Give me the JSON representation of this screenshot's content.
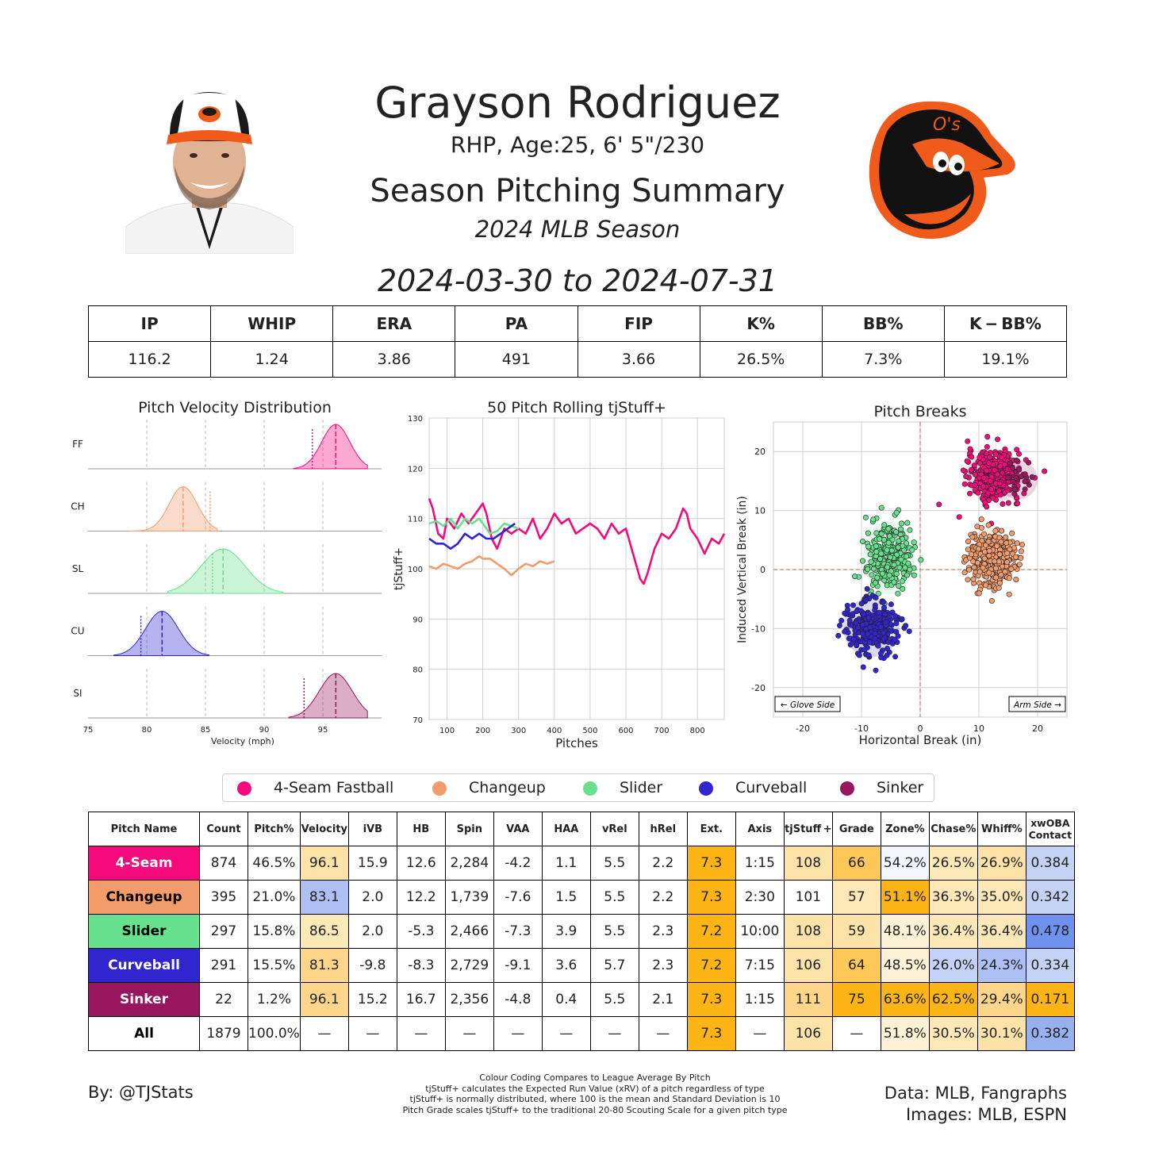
{
  "header": {
    "player_name": "Grayson Rodriguez",
    "bio": "RHP, Age:25, 6' 5\"/230",
    "subtitle": "Season Pitching Summary",
    "season": "2024 MLB Season",
    "date_range": "2024-03-30 to 2024-07-31"
  },
  "images": {
    "headshot": "player-headshot",
    "logo": "orioles-bird-logo"
  },
  "season_stats": {
    "headers": [
      "IP",
      "WHIP",
      "ERA",
      "PA",
      "FIP",
      "K%",
      "BB%",
      "K − BB%"
    ],
    "values": [
      "116.2",
      "1.24",
      "3.86",
      "491",
      "3.66",
      "26.5%",
      "7.3%",
      "19.1%"
    ]
  },
  "colors": {
    "4-Seam Fastball": "#f50a7b",
    "Changeup": "#f39c6b",
    "Slider": "#67e18d",
    "Curveball": "#3025ce",
    "Sinker": "#98165d",
    "grid": "#d0d0d0",
    "orange_dark": "#fdb515",
    "orange_mid": "#fdd16e",
    "orange_light": "#fde9b8",
    "blue_light": "#c7d3f5",
    "blue_mid": "#a6bdf2",
    "blue_dark": "#6f92ee"
  },
  "chart_data": [
    {
      "type": "area",
      "title": "Pitch Velocity Distribution",
      "xlabel": "Velocity (mph)",
      "xlim": [
        75,
        100
      ],
      "xticks": [
        75,
        80,
        85,
        90,
        95
      ],
      "series": [
        {
          "name": "FF",
          "mean": 96.1,
          "sd": 1.2,
          "range": [
            92.5,
            98.8
          ],
          "league_avg": 94.1
        },
        {
          "name": "CH",
          "mean": 83.1,
          "sd": 1.2,
          "range": [
            78.5,
            86.0
          ],
          "league_avg": 85.4
        },
        {
          "name": "SL",
          "mean": 86.5,
          "sd": 1.9,
          "range": [
            81.8,
            91.6
          ],
          "league_avg": 85.6
        },
        {
          "name": "CU",
          "mean": 81.3,
          "sd": 1.4,
          "range": [
            77.2,
            85.3
          ],
          "league_avg": 79.5
        },
        {
          "name": "SI",
          "mean": 96.1,
          "sd": 1.4,
          "range": [
            92.1,
            98.8
          ],
          "league_avg": 93.4
        }
      ]
    },
    {
      "type": "line",
      "title": "50 Pitch Rolling tjStuff+",
      "xlabel": "Pitches",
      "ylabel": "tjStuff+",
      "xlim": [
        50,
        875
      ],
      "ylim": [
        70,
        130
      ],
      "xticks": [
        100,
        200,
        300,
        400,
        500,
        600,
        700,
        800
      ],
      "yticks": [
        70,
        80,
        90,
        100,
        110,
        120,
        130
      ],
      "series": [
        {
          "name": "4-Seam Fastball",
          "x": [
            50,
            60,
            75,
            90,
            100,
            120,
            140,
            160,
            180,
            200,
            210,
            225,
            240,
            260,
            280,
            300,
            320,
            340,
            360,
            380,
            400,
            420,
            440,
            460,
            480,
            500,
            520,
            540,
            560,
            580,
            600,
            620,
            640,
            650,
            660,
            680,
            700,
            720,
            740,
            760,
            770,
            780,
            800,
            820,
            840,
            860,
            875
          ],
          "y": [
            114,
            112,
            107,
            106,
            110,
            108,
            111,
            109,
            111,
            113,
            111,
            106,
            104,
            108,
            107,
            108,
            107,
            110,
            106,
            108,
            111,
            109,
            110,
            107,
            108,
            109,
            108,
            106,
            109,
            107,
            108,
            103,
            98,
            97,
            99,
            104,
            107,
            106,
            108,
            112,
            111,
            108,
            106,
            103,
            106,
            105,
            107
          ]
        },
        {
          "name": "Changeup",
          "x": [
            50,
            70,
            90,
            110,
            130,
            150,
            170,
            190,
            200,
            220,
            240,
            260,
            280,
            300,
            320,
            340,
            360,
            380,
            400
          ],
          "y": [
            100.5,
            100,
            101,
            100.5,
            100,
            101,
            101.5,
            102.5,
            102,
            102,
            101,
            100,
            98.7,
            100,
            101,
            100.5,
            101.5,
            101,
            101.5
          ]
        },
        {
          "name": "Slider",
          "x": [
            50,
            70,
            90,
            110,
            130,
            150,
            170,
            190,
            200,
            220,
            240,
            260,
            280,
            300
          ],
          "y": [
            109,
            109.5,
            108.5,
            110,
            108,
            110,
            109,
            110,
            109,
            107,
            107.5,
            109,
            108.5,
            108
          ]
        },
        {
          "name": "Curveball",
          "x": [
            50,
            70,
            90,
            110,
            130,
            150,
            170,
            190,
            210,
            230,
            250,
            270,
            290
          ],
          "y": [
            106,
            105,
            105,
            104,
            105,
            107,
            106,
            107,
            106,
            106,
            107,
            108,
            109
          ]
        }
      ]
    },
    {
      "type": "scatter",
      "title": "Pitch Breaks",
      "xlabel": "Horizontal Break (in)",
      "ylabel": "Induced Vertical Break (in)",
      "xlim": [
        -25,
        25
      ],
      "ylim": [
        -25,
        25
      ],
      "xticks": [
        -20,
        -10,
        0,
        10,
        20
      ],
      "yticks": [
        -20,
        -10,
        0,
        10,
        20
      ],
      "annotations": [
        "← Glove Side",
        "Arm Side →"
      ],
      "series": [
        {
          "name": "4-Seam Fastball",
          "center": [
            12.6,
            15.9
          ],
          "spread": [
            2.2,
            2.0
          ],
          "count": 874
        },
        {
          "name": "Changeup",
          "center": [
            12.2,
            2.0
          ],
          "spread": [
            1.9,
            2.3
          ],
          "count": 395
        },
        {
          "name": "Slider",
          "center": [
            -5.3,
            2.0
          ],
          "spread": [
            2.0,
            2.8
          ],
          "count": 297
        },
        {
          "name": "Curveball",
          "center": [
            -8.3,
            -9.8
          ],
          "spread": [
            2.2,
            2.3
          ],
          "count": 291
        },
        {
          "name": "Sinker",
          "center": [
            16.7,
            15.2
          ],
          "spread": [
            1.5,
            1.5
          ],
          "count": 22
        }
      ]
    }
  ],
  "legend": [
    "4-Seam Fastball",
    "Changeup",
    "Slider",
    "Curveball",
    "Sinker"
  ],
  "pitch_table": {
    "headers": [
      "Pitch Name",
      "Count",
      "Pitch%",
      "Velocity",
      "iVB",
      "HB",
      "Spin",
      "VAA",
      "HAA",
      "vRel",
      "hRel",
      "Ext.",
      "Axis",
      "tjStuff +",
      "Grade",
      "Zone%",
      "Chase%",
      "Whiff%",
      "xwOBA Contact"
    ],
    "rows": [
      {
        "name": "4-Seam",
        "name_color": "#f50a7b",
        "text_color": "#ffffff",
        "cells": [
          "874",
          "46.5%",
          "96.1",
          "15.9",
          "12.6",
          "2,284",
          "-4.2",
          "1.1",
          "5.5",
          "2.2",
          "7.3",
          "1:15",
          "108",
          "66",
          "54.2%",
          "26.5%",
          "26.9%",
          "0.384"
        ],
        "bg": [
          "",
          "",
          "#fde3a7",
          "",
          "",
          "",
          "",
          "",
          "",
          "",
          "#fdb515",
          "",
          "#fde3a7",
          "#fdc857",
          "#f3f6fc",
          "#fde9b8",
          "#fde3a7",
          "#c4d2f6"
        ]
      },
      {
        "name": "Changeup",
        "name_color": "#f39c6b",
        "text_color": "#000000",
        "cells": [
          "395",
          "21.0%",
          "83.1",
          "2.0",
          "12.2",
          "1,739",
          "-7.6",
          "1.5",
          "5.5",
          "2.2",
          "7.3",
          "2:30",
          "101",
          "57",
          "51.1%",
          "36.3%",
          "35.0%",
          "0.342"
        ],
        "bg": [
          "",
          "",
          "#aebff4",
          "",
          "",
          "",
          "",
          "",
          "",
          "",
          "#fdb515",
          "",
          "",
          "#fde9b8",
          "#fdb515",
          "#fde9b8",
          "#fde9b8",
          "#c4d2f6"
        ]
      },
      {
        "name": "Slider",
        "name_color": "#67e18d",
        "text_color": "#000000",
        "cells": [
          "297",
          "15.8%",
          "86.5",
          "2.0",
          "-5.3",
          "2,466",
          "-7.3",
          "3.9",
          "5.5",
          "2.3",
          "7.2",
          "10:00",
          "108",
          "59",
          "48.1%",
          "36.4%",
          "36.4%",
          "0.478"
        ],
        "bg": [
          "",
          "",
          "#fde9b8",
          "",
          "",
          "",
          "",
          "",
          "",
          "",
          "#fdb515",
          "",
          "#fde3a7",
          "#fde3a7",
          "#fdf1d6",
          "#fde9b8",
          "#fde9b8",
          "#6f92ee"
        ]
      },
      {
        "name": "Curveball",
        "name_color": "#3025ce",
        "text_color": "#ffffff",
        "cells": [
          "291",
          "15.5%",
          "81.3",
          "-9.8",
          "-8.3",
          "2,729",
          "-9.1",
          "3.6",
          "5.7",
          "2.3",
          "7.2",
          "7:15",
          "106",
          "64",
          "48.5%",
          "26.0%",
          "24.3%",
          "0.334"
        ],
        "bg": [
          "",
          "",
          "#fdd68a",
          "",
          "",
          "",
          "",
          "",
          "",
          "",
          "#fdb515",
          "",
          "#fde3a7",
          "#fdc857",
          "#fdf1d6",
          "#c4d2f6",
          "#aebff4",
          "#c4d2f6"
        ]
      },
      {
        "name": "Sinker",
        "name_color": "#98165d",
        "text_color": "#ffffff",
        "cells": [
          "22",
          "1.2%",
          "96.1",
          "15.2",
          "16.7",
          "2,356",
          "-4.8",
          "0.4",
          "5.5",
          "2.1",
          "7.3",
          "1:15",
          "111",
          "75",
          "63.6%",
          "62.5%",
          "29.4%",
          "0.171"
        ],
        "bg": [
          "",
          "",
          "#fdd68a",
          "",
          "",
          "",
          "",
          "",
          "",
          "",
          "#fdb515",
          "",
          "#fdd68a",
          "#fdb515",
          "#fdb515",
          "#fdb515",
          "#fdd68a",
          "#fdb515"
        ]
      },
      {
        "name": "All",
        "name_color": "#ffffff",
        "text_color": "#000000",
        "cells": [
          "1879",
          "100.0%",
          "—",
          "—",
          "—",
          "—",
          "—",
          "—",
          "—",
          "—",
          "7.3",
          "—",
          "106",
          "—",
          "51.8%",
          "30.5%",
          "30.1%",
          "0.382"
        ],
        "bg": [
          "",
          "",
          "",
          "",
          "",
          "",
          "",
          "",
          "",
          "",
          "#fdb515",
          "",
          "#fde3a7",
          "",
          "#fdf1d6",
          "#fde9b8",
          "#fde3a7",
          "#96b0f0"
        ]
      }
    ]
  },
  "footer": {
    "byline": "By: @TJStats",
    "notes": [
      "Colour Coding Compares to League Average By Pitch",
      "tjStuff+ calculates the Expected Run Value (xRV) of a pitch regardless of type",
      "tjStuff+ is normally distributed, where 100 is the mean and Standard Deviation is 10",
      "Pitch Grade scales tjStuff+ to the traditional 20-80 Scouting Scale for a given pitch type"
    ],
    "data_credit": "Data: MLB, Fangraphs",
    "image_credit": "Images: MLB, ESPN"
  }
}
